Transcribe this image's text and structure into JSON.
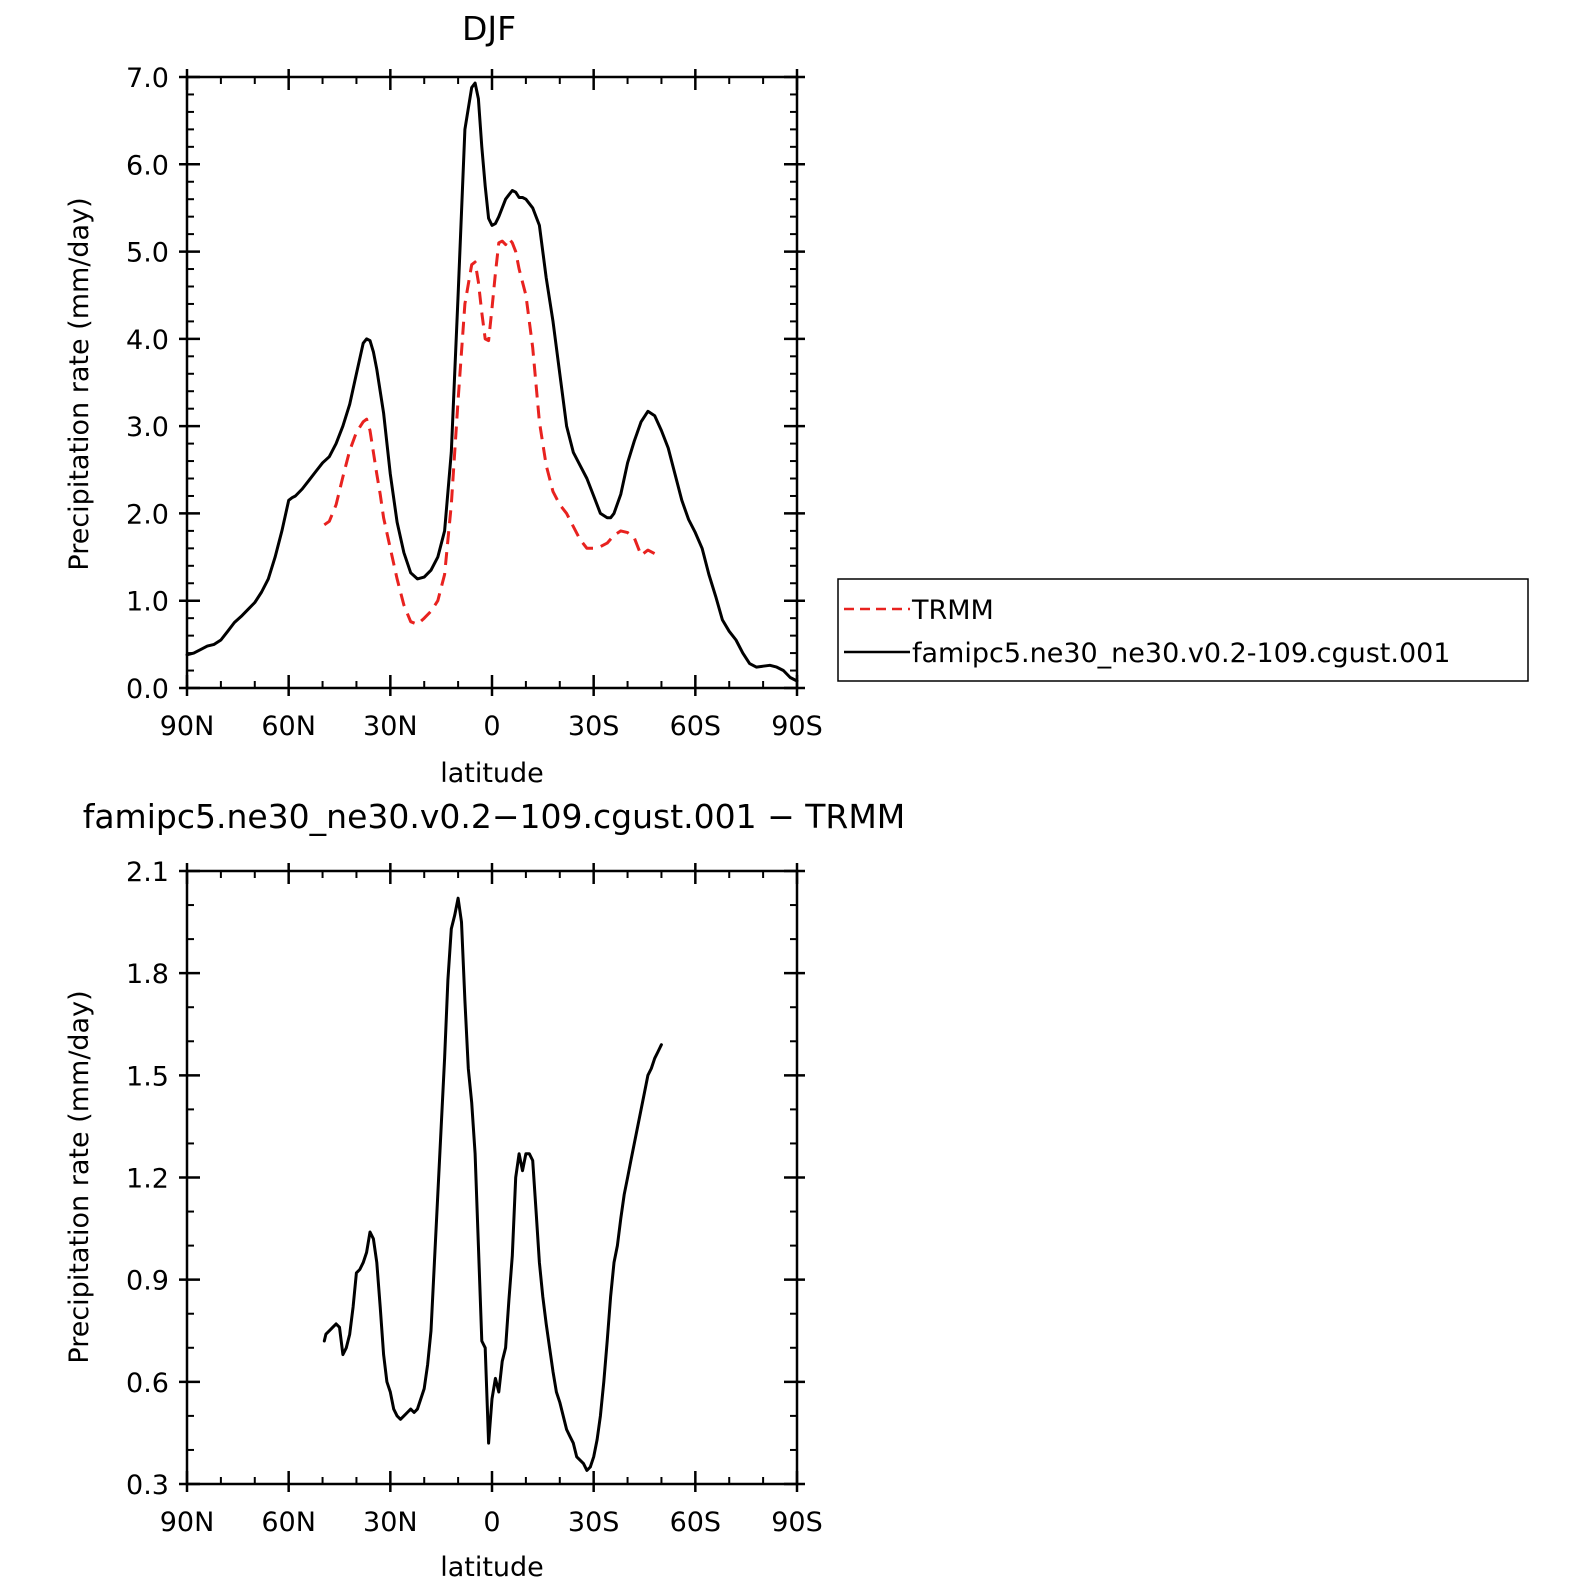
{
  "chart_data": [
    {
      "type": "line",
      "title": "DJF",
      "xlabel": "latitude",
      "ylabel": "Precipitation rate (mm/day)",
      "xlim": [
        90,
        -90
      ],
      "ylim": [
        0,
        7
      ],
      "x_ticks": [
        90,
        60,
        30,
        0,
        -30,
        -60,
        -90
      ],
      "x_tick_labels": [
        "90N",
        "60N",
        "30N",
        "0",
        "30S",
        "60S",
        "90S"
      ],
      "y_ticks": [
        0,
        1,
        2,
        3,
        4,
        5,
        6,
        7
      ],
      "y_tick_labels": [
        "0.0",
        "1.0",
        "2.0",
        "3.0",
        "4.0",
        "5.0",
        "6.0",
        "7.0"
      ],
      "legend_position": "right",
      "series": [
        {
          "name": "TRMM",
          "color": "#e8221f",
          "dash": "dashed",
          "x": [
            49.5,
            48,
            46,
            44,
            42,
            40,
            38,
            37,
            36,
            35,
            34,
            33,
            32,
            30,
            28,
            26,
            24,
            22,
            20,
            18,
            16,
            14,
            12,
            10,
            8,
            6,
            5,
            4,
            3,
            2,
            1,
            0,
            -1,
            -2,
            -3,
            -4,
            -5,
            -6,
            -7,
            -8,
            -9,
            -10,
            -12,
            -14,
            -16,
            -18,
            -20,
            -22,
            -24,
            -26,
            -28,
            -30,
            -32,
            -34,
            -36,
            -38,
            -40,
            -42,
            -44,
            -46,
            -48,
            -49.5
          ],
          "y": [
            1.87,
            1.91,
            2.1,
            2.42,
            2.72,
            2.93,
            3.05,
            3.08,
            2.95,
            2.7,
            2.45,
            2.22,
            1.95,
            1.6,
            1.25,
            0.95,
            0.76,
            0.73,
            0.8,
            0.88,
            1.0,
            1.3,
            2.1,
            3.3,
            4.4,
            4.85,
            4.88,
            4.65,
            4.3,
            4.0,
            3.98,
            4.35,
            4.75,
            5.1,
            5.12,
            5.08,
            5.15,
            5.1,
            5.0,
            4.8,
            4.65,
            4.5,
            3.9,
            3.05,
            2.55,
            2.25,
            2.1,
            2.0,
            1.85,
            1.7,
            1.6,
            1.6,
            1.62,
            1.66,
            1.75,
            1.8,
            1.78,
            1.72,
            1.52,
            1.58,
            1.54,
            1.55
          ]
        },
        {
          "name": "famipc5.ne30_ne30.v0.2-109.cgust.001",
          "color": "#000000",
          "dash": "solid",
          "x": [
            90,
            88,
            86,
            84,
            82,
            80,
            78,
            76,
            74,
            72,
            70,
            68,
            66,
            64,
            62,
            60,
            59,
            58,
            56,
            54,
            52,
            50,
            48,
            46,
            44,
            42,
            40,
            38,
            37,
            36,
            35,
            34,
            32,
            30,
            28,
            26,
            24,
            22,
            20,
            18,
            16,
            14,
            12,
            10,
            8,
            6,
            5,
            4,
            3,
            2,
            1,
            0,
            -1,
            -2,
            -3,
            -4,
            -5,
            -6,
            -7,
            -8,
            -9,
            -10,
            -12,
            -14,
            -16,
            -18,
            -20,
            -22,
            -24,
            -26,
            -28,
            -30,
            -32,
            -34,
            -35,
            -36,
            -38,
            -40,
            -42,
            -44,
            -46,
            -48,
            -50,
            -52,
            -54,
            -56,
            -58,
            -60,
            -62,
            -64,
            -66,
            -68,
            -70,
            -72,
            -74,
            -76,
            -78,
            -80,
            -82,
            -84,
            -86,
            -88,
            -90
          ],
          "y": [
            0.38,
            0.4,
            0.44,
            0.48,
            0.5,
            0.55,
            0.65,
            0.75,
            0.82,
            0.9,
            0.98,
            1.1,
            1.25,
            1.5,
            1.8,
            2.15,
            2.18,
            2.2,
            2.28,
            2.38,
            2.48,
            2.58,
            2.65,
            2.8,
            3.0,
            3.25,
            3.6,
            3.95,
            4.0,
            3.98,
            3.85,
            3.65,
            3.15,
            2.45,
            1.9,
            1.55,
            1.32,
            1.25,
            1.27,
            1.35,
            1.5,
            1.8,
            2.7,
            4.5,
            6.4,
            6.88,
            6.93,
            6.75,
            6.2,
            5.75,
            5.38,
            5.3,
            5.32,
            5.4,
            5.5,
            5.6,
            5.65,
            5.7,
            5.68,
            5.62,
            5.62,
            5.6,
            5.5,
            5.3,
            4.7,
            4.2,
            3.6,
            3.0,
            2.7,
            2.55,
            2.4,
            2.2,
            2.0,
            1.95,
            1.95,
            2.0,
            2.22,
            2.58,
            2.83,
            3.05,
            3.17,
            3.12,
            2.95,
            2.75,
            2.45,
            2.15,
            1.93,
            1.78,
            1.6,
            1.3,
            1.05,
            0.78,
            0.65,
            0.55,
            0.4,
            0.28,
            0.24,
            0.25,
            0.26,
            0.24,
            0.2,
            0.12,
            0.08
          ]
        }
      ]
    },
    {
      "type": "line",
      "title": "famipc5.ne30_ne30.v0.2−109.cgust.001 − TRMM",
      "xlabel": "latitude",
      "ylabel": "Precipitation rate (mm/day)",
      "xlim": [
        90,
        -90
      ],
      "ylim": [
        0.3,
        2.1
      ],
      "x_ticks": [
        90,
        60,
        30,
        0,
        -30,
        -60,
        -90
      ],
      "x_tick_labels": [
        "90N",
        "60N",
        "30N",
        "0",
        "30S",
        "60S",
        "90S"
      ],
      "y_ticks": [
        0.3,
        0.6,
        0.9,
        1.2,
        1.5,
        1.8,
        2.1
      ],
      "y_tick_labels": [
        "0.3",
        "0.6",
        "0.9",
        "1.2",
        "1.5",
        "1.8",
        "2.1"
      ],
      "series": [
        {
          "color": "#000000",
          "dash": "solid",
          "x": [
            49.5,
            49,
            48,
            47,
            46,
            45,
            44,
            43,
            42,
            41,
            40,
            39,
            38,
            37,
            36,
            35,
            34,
            33,
            32,
            31,
            30,
            29,
            28,
            27,
            26,
            25,
            24,
            23,
            22,
            21,
            20,
            19,
            18,
            17,
            16,
            15,
            14,
            13,
            12,
            11,
            10,
            9,
            8,
            7,
            6,
            5,
            4,
            3,
            2,
            1,
            0,
            -1,
            -2,
            -3,
            -4,
            -5,
            -6,
            -7,
            -8,
            -9,
            -10,
            -11,
            -12,
            -13,
            -14,
            -15,
            -16,
            -17,
            -18,
            -19,
            -20,
            -21,
            -22,
            -23,
            -24,
            -25,
            -26,
            -27,
            -28,
            -29,
            -30,
            -31,
            -32,
            -33,
            -34,
            -35,
            -36,
            -37,
            -38,
            -39,
            -40,
            -41,
            -42,
            -43,
            -44,
            -45,
            -46,
            -47,
            -48,
            -49,
            -50
          ],
          "y": [
            0.72,
            0.74,
            0.75,
            0.76,
            0.77,
            0.76,
            0.68,
            0.7,
            0.74,
            0.82,
            0.92,
            0.93,
            0.95,
            0.98,
            1.04,
            1.02,
            0.95,
            0.82,
            0.68,
            0.6,
            0.57,
            0.52,
            0.5,
            0.49,
            0.5,
            0.51,
            0.52,
            0.51,
            0.52,
            0.55,
            0.58,
            0.65,
            0.75,
            0.95,
            1.15,
            1.35,
            1.55,
            1.78,
            1.93,
            1.97,
            2.02,
            1.95,
            1.72,
            1.52,
            1.42,
            1.27,
            1.0,
            0.72,
            0.7,
            0.42,
            0.55,
            0.61,
            0.57,
            0.66,
            0.7,
            0.84,
            0.97,
            1.2,
            1.27,
            1.22,
            1.27,
            1.27,
            1.25,
            1.1,
            0.95,
            0.85,
            0.77,
            0.7,
            0.63,
            0.57,
            0.54,
            0.5,
            0.46,
            0.44,
            0.42,
            0.38,
            0.37,
            0.36,
            0.34,
            0.35,
            0.38,
            0.43,
            0.5,
            0.6,
            0.72,
            0.85,
            0.95,
            1.0,
            1.08,
            1.15,
            1.2,
            1.25,
            1.3,
            1.35,
            1.4,
            1.45,
            1.5,
            1.52,
            1.55,
            1.57,
            1.59
          ]
        }
      ]
    }
  ]
}
